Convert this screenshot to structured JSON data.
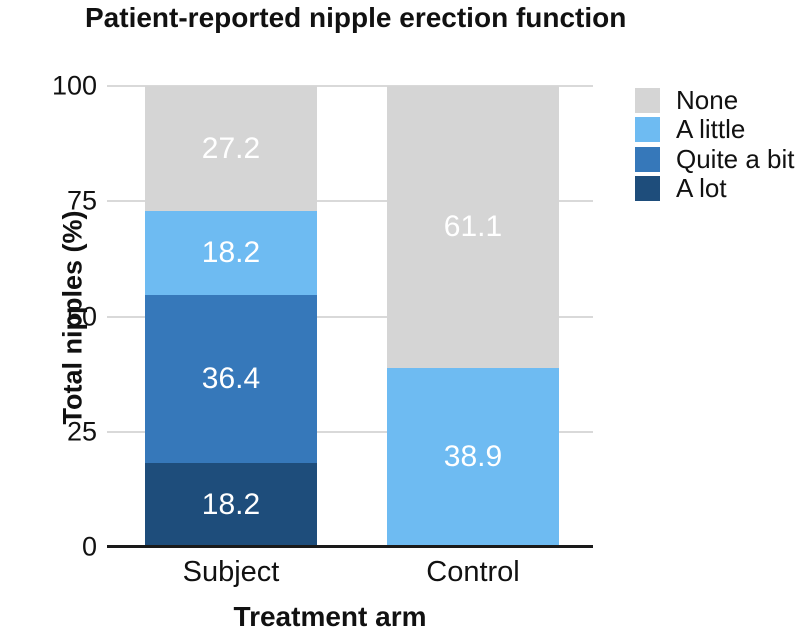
{
  "chart_data": {
    "type": "bar",
    "stacked": true,
    "title": "Patient-reported nipple erection function",
    "xlabel": "Treatment arm",
    "ylabel": "Total nipples (%)",
    "categories": [
      "Subject",
      "Control"
    ],
    "series": [
      {
        "name": "A lot",
        "color": "#1e4d7b",
        "values": [
          18.2,
          0
        ]
      },
      {
        "name": "Quite a bit",
        "color": "#3678ba",
        "values": [
          36.4,
          0
        ]
      },
      {
        "name": "A little",
        "color": "#6ebbf2",
        "values": [
          18.2,
          38.9
        ]
      },
      {
        "name": "None",
        "color": "#d5d5d5",
        "values": [
          27.2,
          61.1
        ]
      }
    ],
    "yticks": [
      0,
      25,
      50,
      75,
      100
    ],
    "ylim": [
      0,
      100
    ],
    "grid": true,
    "value_labels_shown": true,
    "value_label_color": "#ffffff",
    "legend": [
      "None",
      "A little",
      "Quite a bit",
      "A lot"
    ],
    "legend_position": "top-right",
    "gridline_color": "#d9d9d9",
    "axis_line_color": "#1a1a1a"
  }
}
